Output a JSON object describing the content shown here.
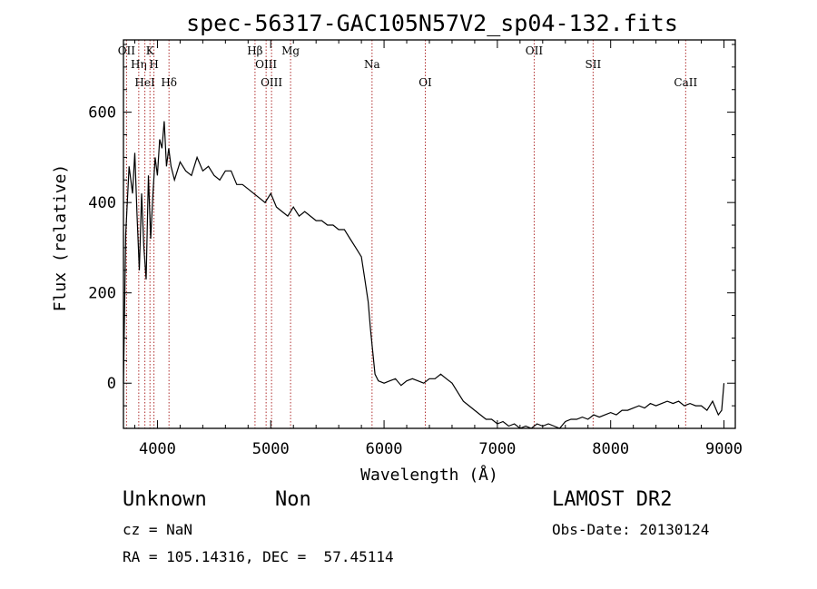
{
  "chart_data": {
    "type": "line",
    "title": "spec-56317-GAC105N57V2_sp04-132.fits",
    "xlabel": "Wavelength (Å)",
    "ylabel": "Flux (relative)",
    "xlim": [
      3700,
      9100
    ],
    "ylim": [
      -100,
      760
    ],
    "xticks": [
      4000,
      5000,
      6000,
      7000,
      8000,
      9000
    ],
    "yticks": [
      0,
      200,
      400,
      600
    ],
    "grid": false,
    "series": [
      {
        "color": "#000000",
        "x": [
          3700,
          3720,
          3750,
          3780,
          3800,
          3820,
          3840,
          3860,
          3880,
          3900,
          3920,
          3940,
          3960,
          3980,
          4000,
          4020,
          4040,
          4060,
          4080,
          4100,
          4120,
          4150,
          4200,
          4250,
          4300,
          4350,
          4400,
          4450,
          4500,
          4550,
          4600,
          4650,
          4700,
          4750,
          4800,
          4850,
          4900,
          4950,
          5000,
          5050,
          5100,
          5150,
          5200,
          5250,
          5300,
          5350,
          5400,
          5450,
          5500,
          5550,
          5600,
          5650,
          5700,
          5750,
          5800,
          5830,
          5860,
          5880,
          5900,
          5920,
          5950,
          6000,
          6050,
          6100,
          6150,
          6200,
          6250,
          6300,
          6350,
          6400,
          6450,
          6500,
          6550,
          6600,
          6650,
          6700,
          6750,
          6800,
          6850,
          6900,
          6950,
          7000,
          7050,
          7100,
          7150,
          7200,
          7250,
          7300,
          7350,
          7400,
          7450,
          7500,
          7550,
          7600,
          7650,
          7700,
          7750,
          7800,
          7850,
          7900,
          7950,
          8000,
          8050,
          8100,
          8150,
          8200,
          8250,
          8300,
          8350,
          8400,
          8450,
          8500,
          8550,
          8600,
          8650,
          8700,
          8750,
          8800,
          8850,
          8900,
          8950,
          8980,
          9000
        ],
        "y": [
          0,
          330,
          480,
          420,
          510,
          370,
          250,
          420,
          300,
          230,
          460,
          320,
          420,
          500,
          460,
          540,
          520,
          580,
          480,
          520,
          480,
          450,
          490,
          470,
          460,
          500,
          470,
          480,
          460,
          450,
          470,
          470,
          440,
          440,
          430,
          420,
          410,
          400,
          420,
          390,
          380,
          370,
          390,
          370,
          380,
          370,
          360,
          360,
          350,
          350,
          340,
          340,
          320,
          300,
          280,
          230,
          180,
          120,
          70,
          20,
          5,
          0,
          5,
          10,
          -5,
          5,
          10,
          5,
          0,
          10,
          10,
          20,
          10,
          0,
          -20,
          -40,
          -50,
          -60,
          -70,
          -80,
          -80,
          -90,
          -85,
          -95,
          -90,
          -100,
          -95,
          -100,
          -90,
          -95,
          -90,
          -95,
          -100,
          -85,
          -80,
          -80,
          -75,
          -80,
          -70,
          -75,
          -70,
          -65,
          -70,
          -60,
          -60,
          -55,
          -50,
          -55,
          -45,
          -50,
          -45,
          -40,
          -45,
          -40,
          -50,
          -45,
          -50,
          -50,
          -60,
          -40,
          -70,
          -60,
          0
        ]
      }
    ],
    "lines": [
      {
        "label": "OII",
        "x": 3727
      },
      {
        "label": "Hη",
        "x": 3835
      },
      {
        "label": "HeI",
        "x": 3889
      },
      {
        "label": "K",
        "x": 3934
      },
      {
        "label": "H",
        "x": 3969
      },
      {
        "label": "Hδ",
        "x": 4102
      },
      {
        "label": "Hβ",
        "x": 4861
      },
      {
        "label": "OIII",
        "x": 4959
      },
      {
        "label": "OIII",
        "x": 5007
      },
      {
        "label": "Mg",
        "x": 5175
      },
      {
        "label": "Na",
        "x": 5894
      },
      {
        "label": "OI",
        "x": 6364
      },
      {
        "label": "OII",
        "x": 7325
      },
      {
        "label": "SII",
        "x": 7845
      },
      {
        "label": "CaII",
        "x": 8662
      }
    ]
  },
  "info": {
    "object_class": "Unknown",
    "subclass": "Non",
    "survey": "LAMOST DR2",
    "redshift": "cz = NaN",
    "obs_date": "Obs-Date: 20130124",
    "coords": "RA = 105.14316, DEC =  57.45114"
  }
}
